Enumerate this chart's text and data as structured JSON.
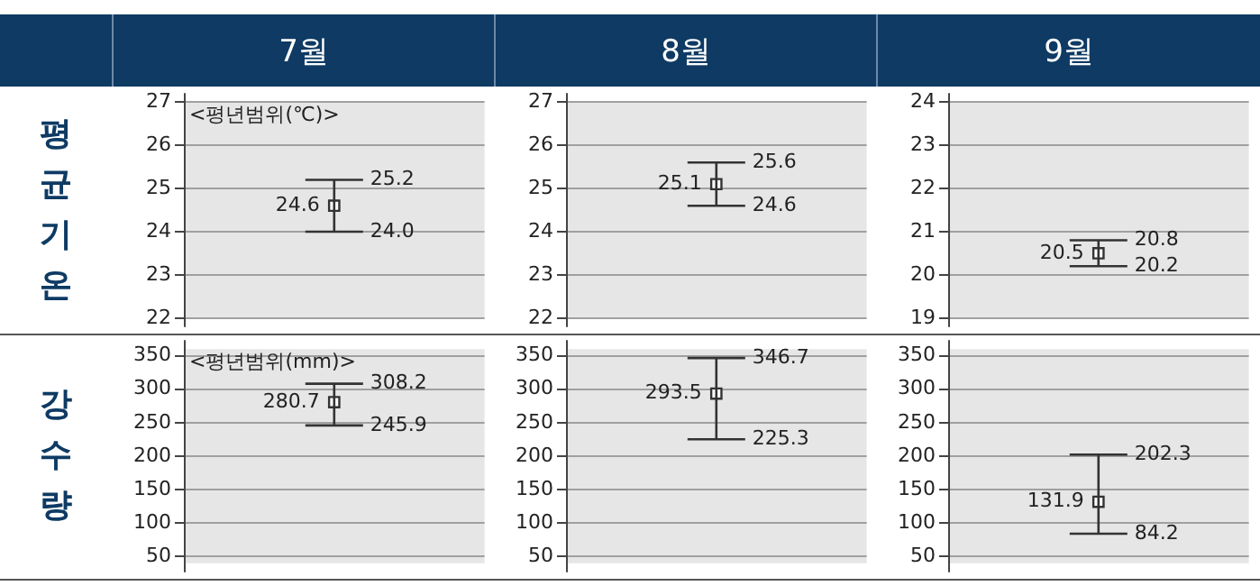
{
  "chart_data": [
    {
      "type": "scatter",
      "title": "7월",
      "ylabel": "평균기온",
      "categories": [
        null
      ],
      "values": [
        24.6
      ],
      "errors": [
        [
          24.0,
          25.2
        ]
      ],
      "data_labels": true,
      "color": "#333333",
      "marker": "square",
      "grid": "y",
      "tick_labels": "y",
      "ylim": [
        22,
        27
      ],
      "yticks": [
        22,
        23,
        24,
        25,
        26,
        27
      ],
      "annotations": [
        "<평년범위(℃)>",
        "25.2",
        "24.0"
      ]
    },
    {
      "type": "scatter",
      "title": "8월",
      "categories": [
        null
      ],
      "values": [
        25.1
      ],
      "errors": [
        [
          24.6,
          25.6
        ]
      ],
      "data_labels": true,
      "color": "#333333",
      "marker": "square",
      "grid": "y",
      "tick_labels": "y",
      "ylim": [
        22,
        27
      ],
      "yticks": [
        22,
        23,
        24,
        25,
        26,
        27
      ],
      "annotations": [
        "25.6",
        "24.6"
      ]
    },
    {
      "type": "scatter",
      "title": "9월",
      "categories": [
        null
      ],
      "values": [
        20.5
      ],
      "errors": [
        [
          20.2,
          20.8
        ]
      ],
      "data_labels": true,
      "color": "#333333",
      "marker": "square",
      "grid": "y",
      "tick_labels": "y",
      "ylim": [
        19,
        24
      ],
      "yticks": [
        19,
        20,
        21,
        22,
        23,
        24
      ],
      "annotations": [
        "20.8",
        "20.2"
      ]
    },
    {
      "type": "scatter",
      "ylabel": "강수량",
      "categories": [
        null
      ],
      "values": [
        280.7
      ],
      "errors": [
        [
          245.9,
          308.2
        ]
      ],
      "data_labels": true,
      "color": "#333333",
      "marker": "square",
      "grid": "y",
      "tick_labels": "y",
      "ylim": [
        40,
        360
      ],
      "yticks": [
        50,
        100,
        150,
        200,
        250,
        300,
        350
      ],
      "annotations": [
        "<평년범위(mm)>",
        "308.2",
        "245.9"
      ]
    },
    {
      "type": "scatter",
      "categories": [
        null
      ],
      "values": [
        293.5
      ],
      "errors": [
        [
          225.3,
          346.7
        ]
      ],
      "data_labels": true,
      "color": "#333333",
      "marker": "square",
      "grid": "y",
      "tick_labels": "y",
      "ylim": [
        40,
        360
      ],
      "yticks": [
        50,
        100,
        150,
        200,
        250,
        300,
        350
      ],
      "annotations": [
        "346.7",
        "225.3"
      ]
    },
    {
      "type": "scatter",
      "categories": [
        null
      ],
      "values": [
        131.9
      ],
      "errors": [
        [
          84.2,
          202.3
        ]
      ],
      "data_labels": true,
      "color": "#333333",
      "marker": "square",
      "grid": "y",
      "tick_labels": "y",
      "ylim": [
        40,
        360
      ],
      "yticks": [
        50,
        100,
        150,
        200,
        250,
        300,
        350
      ],
      "annotations": [
        "202.3",
        "84.2"
      ]
    }
  ]
}
